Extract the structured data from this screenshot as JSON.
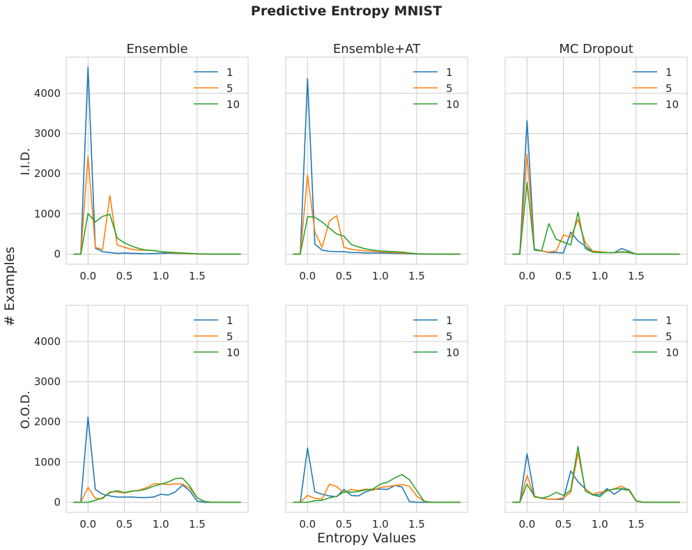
{
  "figure": {
    "title": "Predictive Entropy MNIST",
    "shared_xlabel": "Entropy Values",
    "shared_ylabel": "# Examples",
    "row_labels": [
      "I.I.D.",
      "O.O.D."
    ],
    "colors": {
      "1": "#1f77b4",
      "5": "#ff7f0e",
      "10": "#2ca02c"
    }
  },
  "chart_data": [
    {
      "type": "line",
      "title": "Ensemble",
      "row_label": "I.I.D.",
      "x": [
        -0.2,
        -0.1,
        0.0,
        0.1,
        0.2,
        0.3,
        0.4,
        0.5,
        0.6,
        0.7,
        0.8,
        0.9,
        1.0,
        1.1,
        1.2,
        1.3,
        1.4,
        1.5,
        1.6,
        1.7,
        1.8,
        1.9,
        2.0,
        2.1
      ],
      "xticks": [
        "0.0",
        "0.5",
        "1.0",
        "1.5"
      ],
      "xtick_values": [
        0.0,
        0.5,
        1.0,
        1.5
      ],
      "yticks": [
        "0",
        "1000",
        "2000",
        "3000",
        "4000"
      ],
      "ytick_values": [
        0,
        1000,
        2000,
        3000,
        4000
      ],
      "xlim": [
        -0.3,
        2.2
      ],
      "ylim": [
        -250,
        4900
      ],
      "grid": true,
      "legend": "top-right",
      "series": [
        {
          "name": "1",
          "values": [
            0,
            0,
            4650,
            150,
            60,
            40,
            20,
            30,
            20,
            15,
            10,
            15,
            20,
            25,
            20,
            15,
            10,
            5,
            0,
            0,
            0,
            0,
            0,
            0
          ]
        },
        {
          "name": "5",
          "values": [
            0,
            0,
            2430,
            170,
            110,
            1460,
            230,
            170,
            120,
            100,
            100,
            90,
            60,
            40,
            30,
            20,
            10,
            5,
            0,
            0,
            0,
            0,
            0,
            0
          ]
        },
        {
          "name": "10",
          "values": [
            0,
            0,
            1010,
            800,
            940,
            990,
            400,
            280,
            200,
            140,
            100,
            90,
            60,
            50,
            40,
            30,
            20,
            10,
            5,
            0,
            0,
            0,
            0,
            0
          ]
        }
      ]
    },
    {
      "type": "line",
      "title": "Ensemble+AT",
      "row_label": "I.I.D.",
      "x": [
        -0.2,
        -0.1,
        0.0,
        0.1,
        0.2,
        0.3,
        0.4,
        0.5,
        0.6,
        0.7,
        0.8,
        0.9,
        1.0,
        1.1,
        1.2,
        1.3,
        1.4,
        1.5,
        1.6,
        1.7,
        1.8,
        1.9,
        2.0,
        2.1
      ],
      "xticks": [
        "0.0",
        "0.5",
        "1.0",
        "1.5"
      ],
      "xtick_values": [
        0.0,
        0.5,
        1.0,
        1.5
      ],
      "yticks": [],
      "ytick_values": [
        0,
        1000,
        2000,
        3000,
        4000
      ],
      "xlim": [
        -0.3,
        2.2
      ],
      "ylim": [
        -250,
        4900
      ],
      "grid": true,
      "legend": "top-right",
      "series": [
        {
          "name": "1",
          "values": [
            0,
            0,
            4370,
            250,
            100,
            70,
            60,
            60,
            40,
            40,
            30,
            30,
            30,
            25,
            20,
            15,
            10,
            5,
            0,
            0,
            0,
            0,
            0,
            0
          ]
        },
        {
          "name": "5",
          "values": [
            0,
            0,
            1970,
            550,
            170,
            820,
            960,
            170,
            120,
            100,
            80,
            70,
            60,
            50,
            40,
            30,
            20,
            10,
            0,
            0,
            0,
            0,
            0,
            0
          ]
        },
        {
          "name": "10",
          "values": [
            0,
            0,
            930,
            920,
            800,
            650,
            500,
            450,
            240,
            180,
            130,
            100,
            80,
            70,
            60,
            50,
            30,
            10,
            5,
            0,
            0,
            0,
            0,
            0
          ]
        }
      ]
    },
    {
      "type": "line",
      "title": "MC Dropout",
      "row_label": "I.I.D.",
      "x": [
        -0.2,
        -0.1,
        0.0,
        0.1,
        0.2,
        0.3,
        0.4,
        0.5,
        0.6,
        0.7,
        0.8,
        0.9,
        1.0,
        1.1,
        1.2,
        1.3,
        1.4,
        1.5,
        1.6,
        1.7,
        1.8,
        1.9,
        2.0,
        2.1
      ],
      "xticks": [
        "0.0",
        "0.5",
        "1.0",
        "1.5"
      ],
      "xtick_values": [
        0.0,
        0.5,
        1.0,
        1.5
      ],
      "yticks": [],
      "ytick_values": [
        0,
        1000,
        2000,
        3000,
        4000
      ],
      "xlim": [
        -0.3,
        2.2
      ],
      "ylim": [
        -250,
        4900
      ],
      "grid": true,
      "legend": "top-right",
      "series": [
        {
          "name": "1",
          "values": [
            0,
            0,
            3320,
            130,
            80,
            40,
            40,
            30,
            550,
            330,
            200,
            50,
            50,
            40,
            40,
            140,
            70,
            0,
            0,
            0,
            0,
            0,
            0,
            0
          ]
        },
        {
          "name": "5",
          "values": [
            0,
            0,
            2490,
            110,
            80,
            50,
            80,
            480,
            420,
            860,
            290,
            80,
            60,
            40,
            40,
            60,
            50,
            0,
            0,
            0,
            0,
            0,
            0,
            0
          ]
        },
        {
          "name": "10",
          "values": [
            0,
            0,
            1790,
            100,
            80,
            760,
            370,
            300,
            230,
            1040,
            140,
            50,
            40,
            40,
            40,
            50,
            40,
            0,
            0,
            0,
            0,
            0,
            0,
            0
          ]
        }
      ]
    },
    {
      "type": "line",
      "title": "",
      "row_label": "O.O.D.",
      "x": [
        -0.2,
        -0.1,
        0.0,
        0.1,
        0.2,
        0.3,
        0.4,
        0.5,
        0.6,
        0.7,
        0.8,
        0.9,
        1.0,
        1.1,
        1.2,
        1.3,
        1.4,
        1.5,
        1.6,
        1.7,
        1.8,
        1.9,
        2.0,
        2.1
      ],
      "xticks": [
        "0.0",
        "0.5",
        "1.0",
        "1.5"
      ],
      "xtick_values": [
        0.0,
        0.5,
        1.0,
        1.5
      ],
      "yticks": [
        "0",
        "1000",
        "2000",
        "3000",
        "4000"
      ],
      "ytick_values": [
        0,
        1000,
        2000,
        3000,
        4000
      ],
      "xlim": [
        -0.3,
        2.2
      ],
      "ylim": [
        -250,
        4900
      ],
      "grid": true,
      "legend": "top-right",
      "series": [
        {
          "name": "1",
          "values": [
            0,
            0,
            2120,
            320,
            200,
            160,
            130,
            130,
            130,
            120,
            120,
            130,
            200,
            180,
            260,
            430,
            280,
            30,
            0,
            0,
            0,
            0,
            0,
            0
          ]
        },
        {
          "name": "5",
          "values": [
            0,
            0,
            370,
            100,
            90,
            260,
            260,
            230,
            270,
            300,
            360,
            460,
            460,
            440,
            460,
            450,
            350,
            110,
            20,
            0,
            0,
            0,
            0,
            0
          ]
        },
        {
          "name": "10",
          "values": [
            0,
            0,
            0,
            50,
            110,
            240,
            290,
            240,
            280,
            290,
            330,
            400,
            450,
            500,
            590,
            600,
            400,
            110,
            20,
            0,
            0,
            0,
            0,
            0
          ]
        }
      ]
    },
    {
      "type": "line",
      "title": "",
      "row_label": "O.O.D.",
      "x": [
        -0.2,
        -0.1,
        0.0,
        0.1,
        0.2,
        0.3,
        0.4,
        0.5,
        0.6,
        0.7,
        0.8,
        0.9,
        1.0,
        1.1,
        1.2,
        1.3,
        1.4,
        1.5,
        1.6,
        1.7,
        1.8,
        1.9,
        2.0,
        2.1
      ],
      "xticks": [
        "0.0",
        "0.5",
        "1.0",
        "1.5"
      ],
      "xtick_values": [
        0.0,
        0.5,
        1.0,
        1.5
      ],
      "yticks": [],
      "ytick_values": [
        0,
        1000,
        2000,
        3000,
        4000
      ],
      "xlim": [
        -0.3,
        2.2
      ],
      "ylim": [
        -250,
        4900
      ],
      "grid": true,
      "legend": "top-right",
      "series": [
        {
          "name": "1",
          "values": [
            0,
            0,
            1350,
            260,
            200,
            160,
            140,
            320,
            170,
            160,
            260,
            320,
            330,
            320,
            420,
            380,
            20,
            0,
            0,
            0,
            0,
            0,
            0,
            0
          ]
        },
        {
          "name": "5",
          "values": [
            0,
            0,
            170,
            100,
            80,
            450,
            390,
            240,
            320,
            290,
            330,
            300,
            370,
            390,
            420,
            440,
            400,
            160,
            20,
            0,
            0,
            0,
            0,
            0
          ]
        },
        {
          "name": "10",
          "values": [
            0,
            0,
            0,
            40,
            50,
            110,
            150,
            260,
            250,
            270,
            310,
            330,
            450,
            500,
            610,
            690,
            560,
            300,
            30,
            0,
            0,
            0,
            0,
            0
          ]
        }
      ]
    },
    {
      "type": "line",
      "title": "",
      "row_label": "O.O.D.",
      "x": [
        -0.2,
        -0.1,
        0.0,
        0.1,
        0.2,
        0.3,
        0.4,
        0.5,
        0.6,
        0.7,
        0.8,
        0.9,
        1.0,
        1.1,
        1.2,
        1.3,
        1.4,
        1.5,
        1.6,
        1.7,
        1.8,
        1.9,
        2.0,
        2.1
      ],
      "xticks": [
        "0.0",
        "0.5",
        "1.0",
        "1.5"
      ],
      "xtick_values": [
        0.0,
        0.5,
        1.0,
        1.5
      ],
      "yticks": [],
      "ytick_values": [
        0,
        1000,
        2000,
        3000,
        4000
      ],
      "xlim": [
        -0.3,
        2.2
      ],
      "ylim": [
        -250,
        4900
      ],
      "grid": true,
      "legend": "top-right",
      "series": [
        {
          "name": "1",
          "values": [
            0,
            0,
            1210,
            150,
            100,
            80,
            70,
            80,
            780,
            510,
            340,
            180,
            190,
            340,
            200,
            330,
            300,
            30,
            0,
            0,
            0,
            0,
            0,
            0
          ]
        },
        {
          "name": "5",
          "values": [
            0,
            0,
            670,
            130,
            110,
            80,
            80,
            110,
            250,
            1230,
            330,
            200,
            250,
            280,
            340,
            400,
            300,
            30,
            0,
            0,
            0,
            0,
            0,
            0
          ]
        },
        {
          "name": "10",
          "values": [
            0,
            0,
            450,
            150,
            100,
            150,
            250,
            170,
            300,
            1390,
            280,
            190,
            140,
            300,
            330,
            340,
            320,
            40,
            0,
            0,
            0,
            0,
            0,
            0
          ]
        }
      ]
    }
  ]
}
